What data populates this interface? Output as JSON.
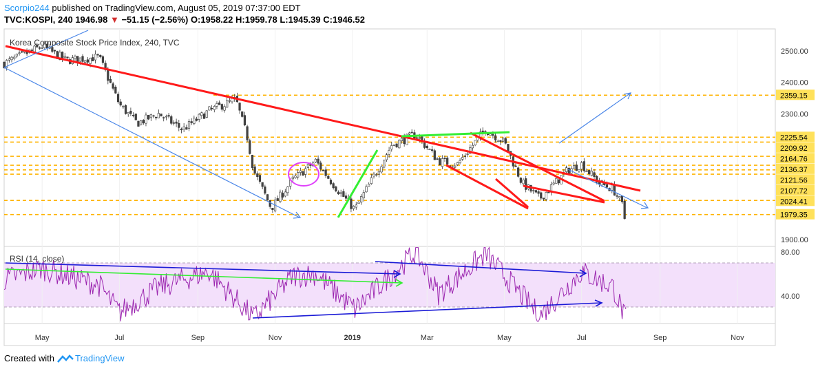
{
  "header": {
    "author": "Scorpio244",
    "published_text": "published on TradingView.com, August 05, 2019 07:37:00 EDT",
    "symbol": "TVC:KOSPI, 240",
    "price": "1946.98",
    "change_arrow": "▼",
    "change": "−51.15 (−2.56%)",
    "o_label": "O:",
    "o": "1958.22",
    "h_label": "H:",
    "h": "1959.78",
    "l_label": "L:",
    "l": "1945.39",
    "c_label": "C:",
    "c": "1946.52"
  },
  "chart": {
    "title": "Korea Composite Stock Price Index, 240, TVC"
  },
  "rsi": {
    "label": "RSI (14, close)"
  },
  "footer": {
    "created_with": "Created with",
    "brand": "TradingView"
  },
  "colors": {
    "up": "#26a69a",
    "down": "#ef5350",
    "candle_body": "#444444",
    "red_trend": "#ff1a1a",
    "green_trend": "#33ee33",
    "blue_arrow": "#4a86e8",
    "dark_blue_line": "#1a1ad6",
    "dashed_level": "#ffb300",
    "level_tag": "#ffe15a",
    "rsi_line": "#9c27b0",
    "rsi_band": "#f3e0fb"
  },
  "chart_data": {
    "type": "candlestick",
    "title": "Korea Composite Stock Price Index, 240, TVC",
    "x_labels": [
      "May",
      "Jul",
      "Sep",
      "Nov",
      "2019",
      "Mar",
      "May",
      "Jul",
      "Sep",
      "Nov"
    ],
    "y_ticks": [
      1900,
      2000,
      2100,
      2200,
      2300,
      2400,
      2500
    ],
    "y_tick_labels": [
      "1900.00",
      "",
      "",
      "",
      "2300.00",
      "2400.00",
      "2500.00"
    ],
    "ylim": [
      1878,
      2570
    ],
    "price_levels": [
      {
        "value": 2359.15,
        "label": "2359.15"
      },
      {
        "value": 2225.54,
        "label": "2225.54"
      },
      {
        "value": 2209.92,
        "label": "2209.92"
      },
      {
        "value": 2164.76,
        "label": "2164.76"
      },
      {
        "value": 2136.37,
        "label": "2136.37"
      },
      {
        "value": 2121.56,
        "label": "2121.56"
      },
      {
        "value": 2107.72,
        "label": "2107.72"
      },
      {
        "value": 2024.41,
        "label": "2024.41"
      },
      {
        "value": 1979.35,
        "label": "1979.35"
      }
    ],
    "price_path": [
      {
        "date": "2018-04-01",
        "close": 2460
      },
      {
        "date": "2018-05-01",
        "close": 2515
      },
      {
        "date": "2018-05-20",
        "close": 2470
      },
      {
        "date": "2018-06-15",
        "close": 2480
      },
      {
        "date": "2018-07-01",
        "close": 2330
      },
      {
        "date": "2018-07-15",
        "close": 2270
      },
      {
        "date": "2018-08-01",
        "close": 2300
      },
      {
        "date": "2018-08-20",
        "close": 2250
      },
      {
        "date": "2018-09-10",
        "close": 2310
      },
      {
        "date": "2018-10-01",
        "close": 2345
      },
      {
        "date": "2018-10-10",
        "close": 2225
      },
      {
        "date": "2018-10-15",
        "close": 2120
      },
      {
        "date": "2018-10-29",
        "close": 2000
      },
      {
        "date": "2018-11-15",
        "close": 2090
      },
      {
        "date": "2018-12-03",
        "close": 2150
      },
      {
        "date": "2018-12-20",
        "close": 2060
      },
      {
        "date": "2019-01-03",
        "close": 1995
      },
      {
        "date": "2019-02-01",
        "close": 2200
      },
      {
        "date": "2019-02-20",
        "close": 2235
      },
      {
        "date": "2019-03-10",
        "close": 2150
      },
      {
        "date": "2019-03-25",
        "close": 2140
      },
      {
        "date": "2019-04-16",
        "close": 2250
      },
      {
        "date": "2019-05-01",
        "close": 2210
      },
      {
        "date": "2019-05-15",
        "close": 2080
      },
      {
        "date": "2019-05-29",
        "close": 2030
      },
      {
        "date": "2019-06-20",
        "close": 2120
      },
      {
        "date": "2019-07-01",
        "close": 2140
      },
      {
        "date": "2019-07-15",
        "close": 2080
      },
      {
        "date": "2019-07-26",
        "close": 2060
      },
      {
        "date": "2019-08-02",
        "close": 2010
      },
      {
        "date": "2019-08-05",
        "close": 1946.98
      }
    ],
    "rsi": {
      "name": "RSI (14, close)",
      "y_ticks": [
        40,
        80
      ],
      "y_tick_labels": [
        "40.00",
        "80.00"
      ],
      "band": [
        30,
        70
      ],
      "ylim": [
        15,
        85
      ],
      "path": [
        {
          "date": "2018-04-01",
          "value": 55
        },
        {
          "date": "2018-05-01",
          "value": 65
        },
        {
          "date": "2018-06-15",
          "value": 50
        },
        {
          "date": "2018-07-01",
          "value": 25
        },
        {
          "date": "2018-08-01",
          "value": 48
        },
        {
          "date": "2018-09-10",
          "value": 62
        },
        {
          "date": "2018-10-15",
          "value": 20
        },
        {
          "date": "2018-11-15",
          "value": 58
        },
        {
          "date": "2018-12-03",
          "value": 60
        },
        {
          "date": "2019-01-03",
          "value": 28
        },
        {
          "date": "2019-02-20",
          "value": 80
        },
        {
          "date": "2019-03-10",
          "value": 42
        },
        {
          "date": "2019-04-16",
          "value": 78
        },
        {
          "date": "2019-05-29",
          "value": 22
        },
        {
          "date": "2019-07-01",
          "value": 62
        },
        {
          "date": "2019-07-26",
          "value": 48
        },
        {
          "date": "2019-08-05",
          "value": 18
        }
      ]
    }
  }
}
